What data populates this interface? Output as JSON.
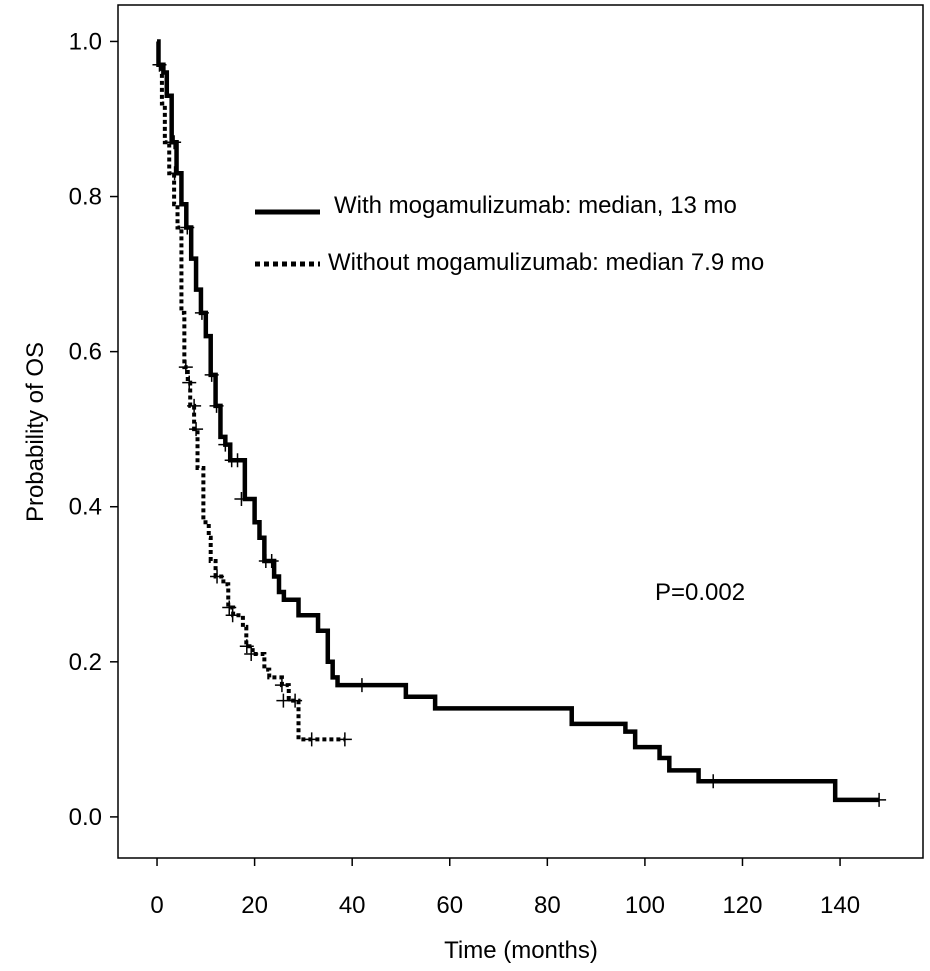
{
  "chart_data": {
    "type": "line",
    "step": true,
    "title": "",
    "xlabel": "Time (months)",
    "ylabel": "Probability of OS",
    "xlim": [
      -8,
      157
    ],
    "ylim": [
      -0.053,
      1.047
    ],
    "xticks": [
      0,
      20,
      40,
      60,
      80,
      100,
      120,
      140
    ],
    "yticks": [
      0.0,
      0.2,
      0.4,
      0.6,
      0.8,
      1.0
    ],
    "ytick_labels": [
      "0.0",
      "0.2",
      "0.4",
      "0.6",
      "0.8",
      "1.0"
    ],
    "grid": false,
    "legend_position": "top-right",
    "annotation": "P=0.002",
    "series": [
      {
        "name": "With mogamulizumab: median, 13 mo",
        "line_style": "solid",
        "color": "#000000",
        "steps": [
          [
            0,
            1.0
          ],
          [
            0.3,
            0.97
          ],
          [
            1.3,
            0.96
          ],
          [
            2,
            0.93
          ],
          [
            3,
            0.87
          ],
          [
            4,
            0.83
          ],
          [
            5,
            0.79
          ],
          [
            6,
            0.76
          ],
          [
            7,
            0.72
          ],
          [
            8,
            0.68
          ],
          [
            9,
            0.65
          ],
          [
            10,
            0.62
          ],
          [
            11,
            0.57
          ],
          [
            12,
            0.53
          ],
          [
            13,
            0.49
          ],
          [
            14,
            0.48
          ],
          [
            15,
            0.46
          ],
          [
            18,
            0.41
          ],
          [
            20,
            0.38
          ],
          [
            21,
            0.36
          ],
          [
            22,
            0.33
          ],
          [
            24,
            0.31
          ],
          [
            25,
            0.29
          ],
          [
            26,
            0.28
          ],
          [
            29,
            0.26
          ],
          [
            33,
            0.24
          ],
          [
            35,
            0.2
          ],
          [
            36,
            0.18
          ],
          [
            37,
            0.17
          ],
          [
            51,
            0.155
          ],
          [
            57,
            0.14
          ],
          [
            85,
            0.12
          ],
          [
            96,
            0.11
          ],
          [
            98,
            0.09
          ],
          [
            103,
            0.076
          ],
          [
            105,
            0.06
          ],
          [
            111,
            0.046
          ],
          [
            139,
            0.022
          ],
          [
            148,
            0.022
          ]
        ],
        "censored": [
          [
            0.5,
            0.97
          ],
          [
            3.5,
            0.87
          ],
          [
            6.2,
            0.76
          ],
          [
            9.2,
            0.65
          ],
          [
            11.2,
            0.57
          ],
          [
            12.2,
            0.53
          ],
          [
            14,
            0.48
          ],
          [
            15.3,
            0.46
          ],
          [
            16.5,
            0.46
          ],
          [
            17.3,
            0.41
          ],
          [
            22.3,
            0.33
          ],
          [
            23.5,
            0.33
          ],
          [
            42,
            0.17
          ],
          [
            114,
            0.046
          ],
          [
            148,
            0.022
          ]
        ]
      },
      {
        "name": "Without mogamulizumab: median  7.9 mo",
        "line_style": "dotted",
        "color": "#000000",
        "steps": [
          [
            0,
            0.97
          ],
          [
            1,
            0.92
          ],
          [
            1.6,
            0.87
          ],
          [
            2.5,
            0.83
          ],
          [
            3.5,
            0.79
          ],
          [
            4.2,
            0.76
          ],
          [
            5,
            0.65
          ],
          [
            5.6,
            0.58
          ],
          [
            6.3,
            0.56
          ],
          [
            6.8,
            0.53
          ],
          [
            7.6,
            0.5
          ],
          [
            8.3,
            0.45
          ],
          [
            9.5,
            0.38
          ],
          [
            10.6,
            0.36
          ],
          [
            11,
            0.33
          ],
          [
            12,
            0.31
          ],
          [
            13.6,
            0.3
          ],
          [
            14.6,
            0.27
          ],
          [
            15.6,
            0.26
          ],
          [
            17.6,
            0.245
          ],
          [
            18.3,
            0.22
          ],
          [
            19.6,
            0.21
          ],
          [
            22,
            0.19
          ],
          [
            23,
            0.18
          ],
          [
            25.6,
            0.17
          ],
          [
            27,
            0.15
          ],
          [
            29,
            0.1
          ],
          [
            38.5,
            0.1
          ]
        ],
        "censored": [
          [
            3.6,
            0.83
          ],
          [
            5.9,
            0.58
          ],
          [
            6.6,
            0.56
          ],
          [
            7.6,
            0.53
          ],
          [
            8,
            0.5
          ],
          [
            12.3,
            0.31
          ],
          [
            14.8,
            0.27
          ],
          [
            15.5,
            0.26
          ],
          [
            18.4,
            0.22
          ],
          [
            19.3,
            0.21
          ],
          [
            25.6,
            0.17
          ],
          [
            25.9,
            0.15
          ],
          [
            28.3,
            0.15
          ],
          [
            31.7,
            0.1
          ],
          [
            38.5,
            0.1
          ]
        ]
      }
    ]
  }
}
